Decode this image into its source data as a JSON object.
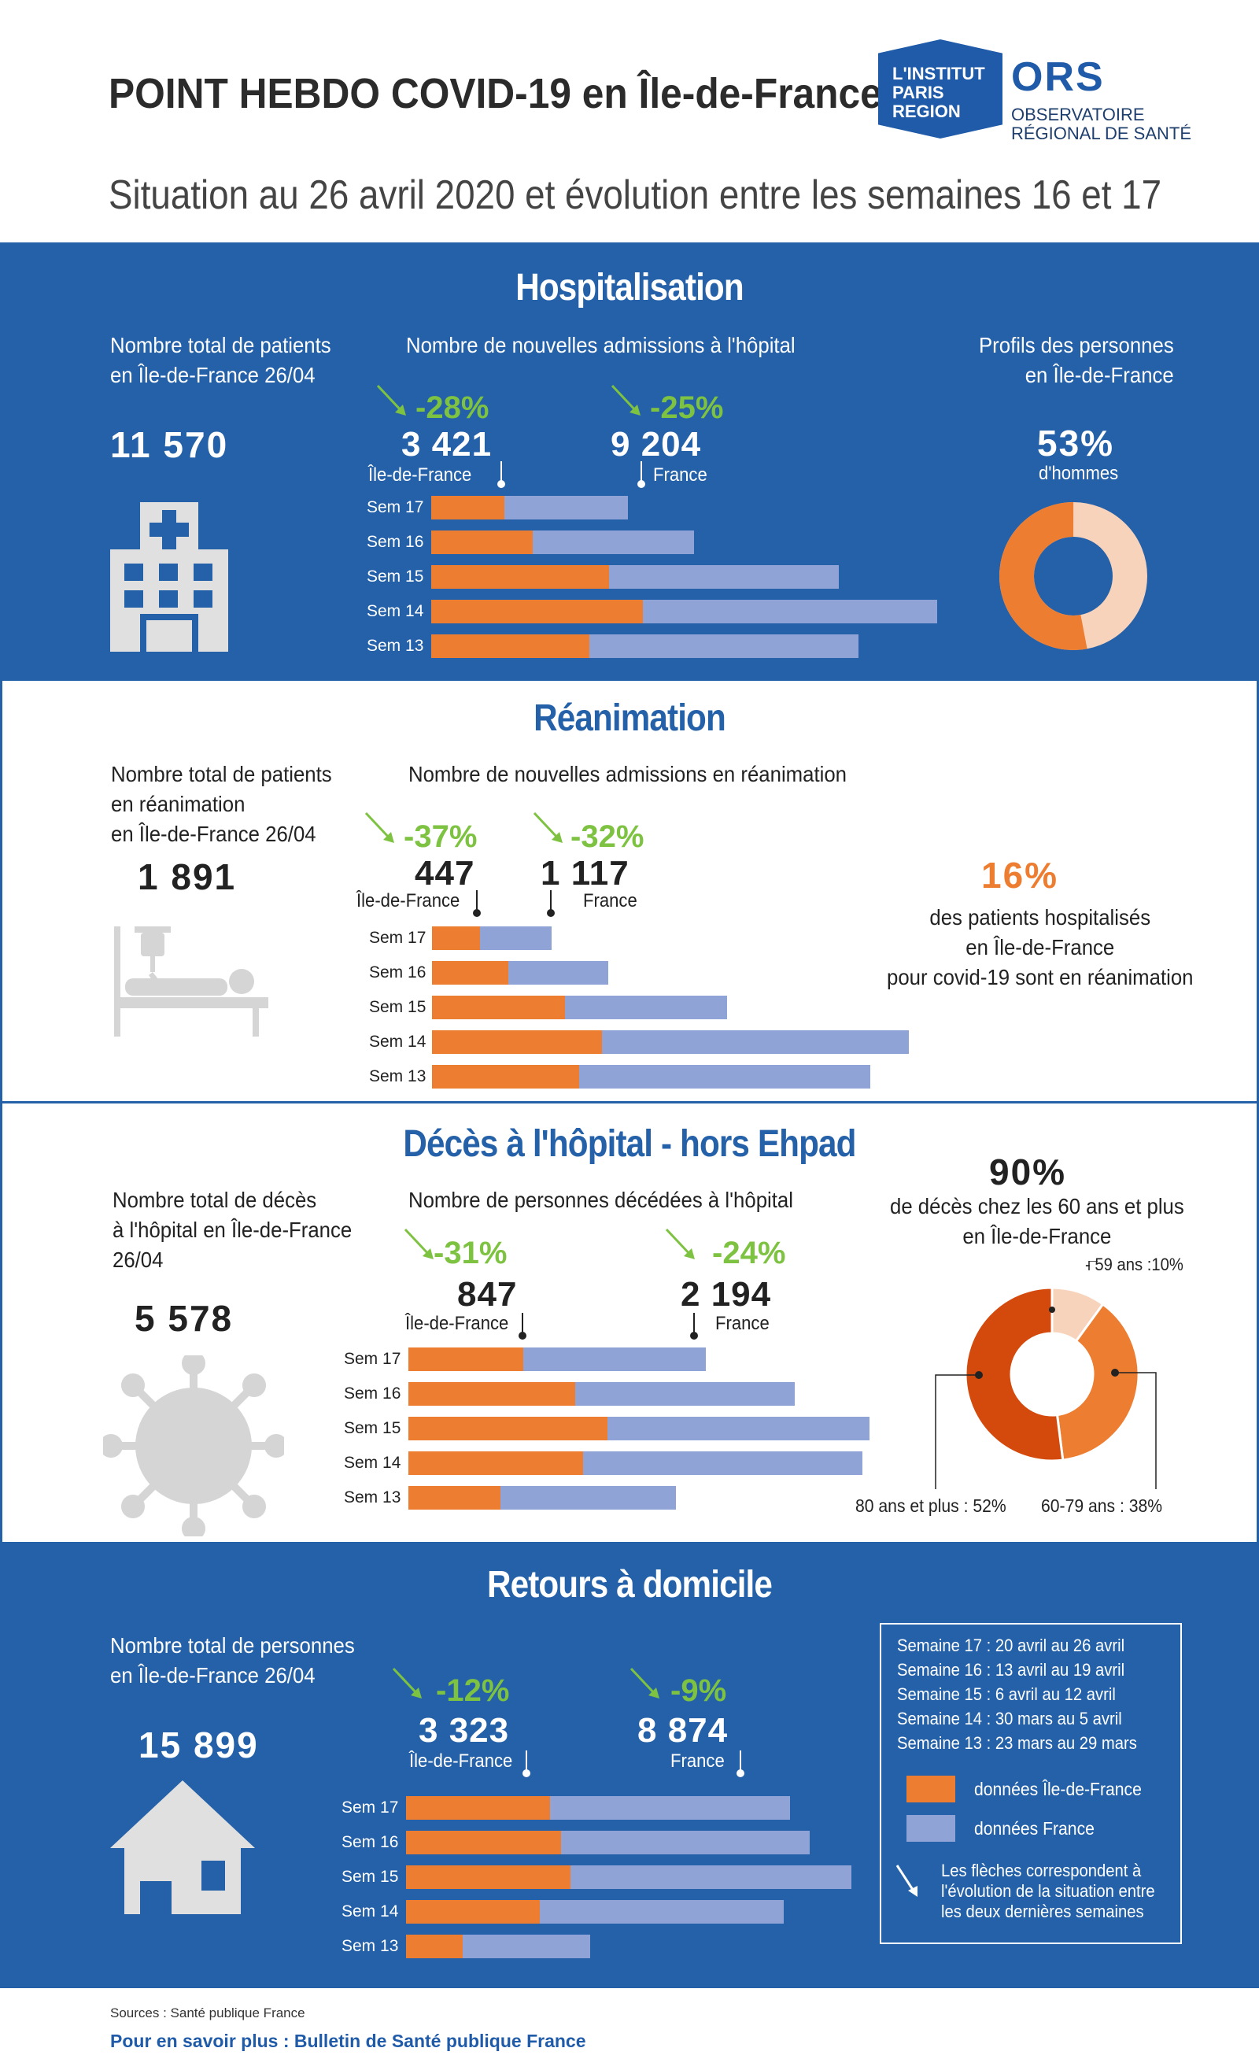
{
  "header": {
    "title": "POINT HEBDO COVID-19 en Île-de-France",
    "subtitle": "Situation au 26 avril 2020 et évolution entre les semaines 16 et 17",
    "logo_institut": "L'INSTITUT\nPARIS\nREGION",
    "logo_ors": "ORS",
    "logo_ors_sub": "OBSERVATOIRE\nRÉGIONAL DE SANTÉ"
  },
  "colors": {
    "idf": "#ed7d31",
    "france": "#8fa3d6",
    "blue": "#2461a8",
    "green": "#7ec241",
    "dark_orange": "#d44a0c",
    "light_peach": "#f8d3bb"
  },
  "hospitalisation": {
    "title": "Hospitalisation",
    "total_desc": "Nombre total de patients\nen Île-de-France 26/04",
    "total": "11 570",
    "admissions_desc": "Nombre de nouvelles admissions à l'hôpital",
    "idf_pct": "-28%",
    "idf_value": "3 421",
    "idf_label": "Île-de-France",
    "fr_pct": "-25%",
    "fr_value": "9 204",
    "fr_label": "France",
    "profile_desc": "Profils des personnes\nen Île-de-France",
    "men_pct": "53%",
    "men_label": "d'hommes",
    "men_share": 0.53,
    "icon": "hospital-icon"
  },
  "reanimation": {
    "title": "Réanimation",
    "total_desc": "Nombre total de patients\nen réanimation\nen Île-de-France 26/04",
    "total": "1 891",
    "admissions_desc": "Nombre de nouvelles admissions en réanimation",
    "idf_pct": "-37%",
    "idf_value": "447",
    "idf_label": "Île-de-France",
    "fr_pct": "-32%",
    "fr_value": "1 117",
    "fr_label": "France",
    "share_pct": "16%",
    "share_desc": "des patients hospitalisés\nen Île-de-France\npour covid-19 sont en réanimation",
    "icon": "patient-bed-icon"
  },
  "deces": {
    "title": "Décès à l'hôpital - hors Ehpad",
    "total_desc": "Nombre total de décès\nà l'hôpital en Île-de-France\n26/04",
    "total": "5 578",
    "admissions_desc": "Nombre de personnes décédées à l'hôpital",
    "idf_pct": "-31%",
    "idf_value": "847",
    "idf_label": "Île-de-France",
    "fr_pct": "-24%",
    "fr_value": "2 194",
    "fr_label": "France",
    "age_pct": "90%",
    "age_desc": "de décès chez les 60 ans et plus\nen Île-de-France",
    "age_59_label": "- 59 ans :10%",
    "age_80_label": "80 ans et plus : 52%",
    "age_6079_label": "60-79 ans : 38%",
    "age_shares": [
      0.1,
      0.38,
      0.52
    ],
    "icon": "virus-icon"
  },
  "retours": {
    "title": "Retours à domicile",
    "total_desc": "Nombre total de personnes\nen Île-de-France 26/04",
    "total": "15 899",
    "idf_pct": "-12%",
    "idf_value": "3 323",
    "idf_label": "Île-de-France",
    "fr_pct": "-9%",
    "fr_value": "8 874",
    "fr_label": "France",
    "icon": "house-icon"
  },
  "legend": {
    "weeks": [
      "Semaine 17 : 20 avril au 26 avril",
      "Semaine 16 : 13 avril au 19 avril",
      "Semaine 15 : 6 avril au 12 avril",
      "Semaine 14 : 30 mars au 5 avril",
      "Semaine 13 : 23 mars au 29 mars"
    ],
    "idf": "données Île-de-France",
    "france": "données France",
    "arrow_note": "Les flèches correspondent à\nl'évolution de la situation entre\nles deux dernières semaines"
  },
  "footer": {
    "sources": "Sources : Santé publique France",
    "more": "Pour en savoir plus : Bulletin de Santé publique France"
  },
  "chart_data": [
    {
      "type": "bar",
      "title": "Nombre de nouvelles admissions à l'hôpital",
      "categories": [
        "Sem 17",
        "Sem 16",
        "Sem 15",
        "Sem 14",
        "Sem 13"
      ],
      "series": [
        {
          "name": "données Île-de-France",
          "values": [
            3421,
            4750,
            8340,
            9900,
            7420
          ]
        },
        {
          "name": "données France",
          "values": [
            9204,
            12300,
            19100,
            23700,
            20000
          ]
        }
      ]
    },
    {
      "type": "bar",
      "title": "Nombre de nouvelles admissions en réanimation",
      "categories": [
        "Sem 17",
        "Sem 16",
        "Sem 15",
        "Sem 14",
        "Sem 13"
      ],
      "series": [
        {
          "name": "données Île-de-France",
          "values": [
            447,
            710,
            1240,
            1580,
            1370
          ]
        },
        {
          "name": "données France",
          "values": [
            1117,
            1640,
            2750,
            4440,
            4080
          ]
        }
      ]
    },
    {
      "type": "bar",
      "title": "Nombre de personnes décédées à l'hôpital",
      "categories": [
        "Sem 17",
        "Sem 16",
        "Sem 15",
        "Sem 14",
        "Sem 13"
      ],
      "series": [
        {
          "name": "données Île-de-France",
          "values": [
            847,
            1230,
            1470,
            1290,
            680
          ]
        },
        {
          "name": "données France",
          "values": [
            2194,
            2850,
            3400,
            3350,
            1970
          ]
        }
      ]
    },
    {
      "type": "bar",
      "title": "Retours à domicile",
      "categories": [
        "Sem 17",
        "Sem 16",
        "Sem 15",
        "Sem 14",
        "Sem 13"
      ],
      "series": [
        {
          "name": "données Île-de-France",
          "values": [
            3323,
            3590,
            3800,
            3100,
            1310
          ]
        },
        {
          "name": "données France",
          "values": [
            8874,
            9330,
            10300,
            8740,
            4260
          ]
        }
      ]
    }
  ]
}
